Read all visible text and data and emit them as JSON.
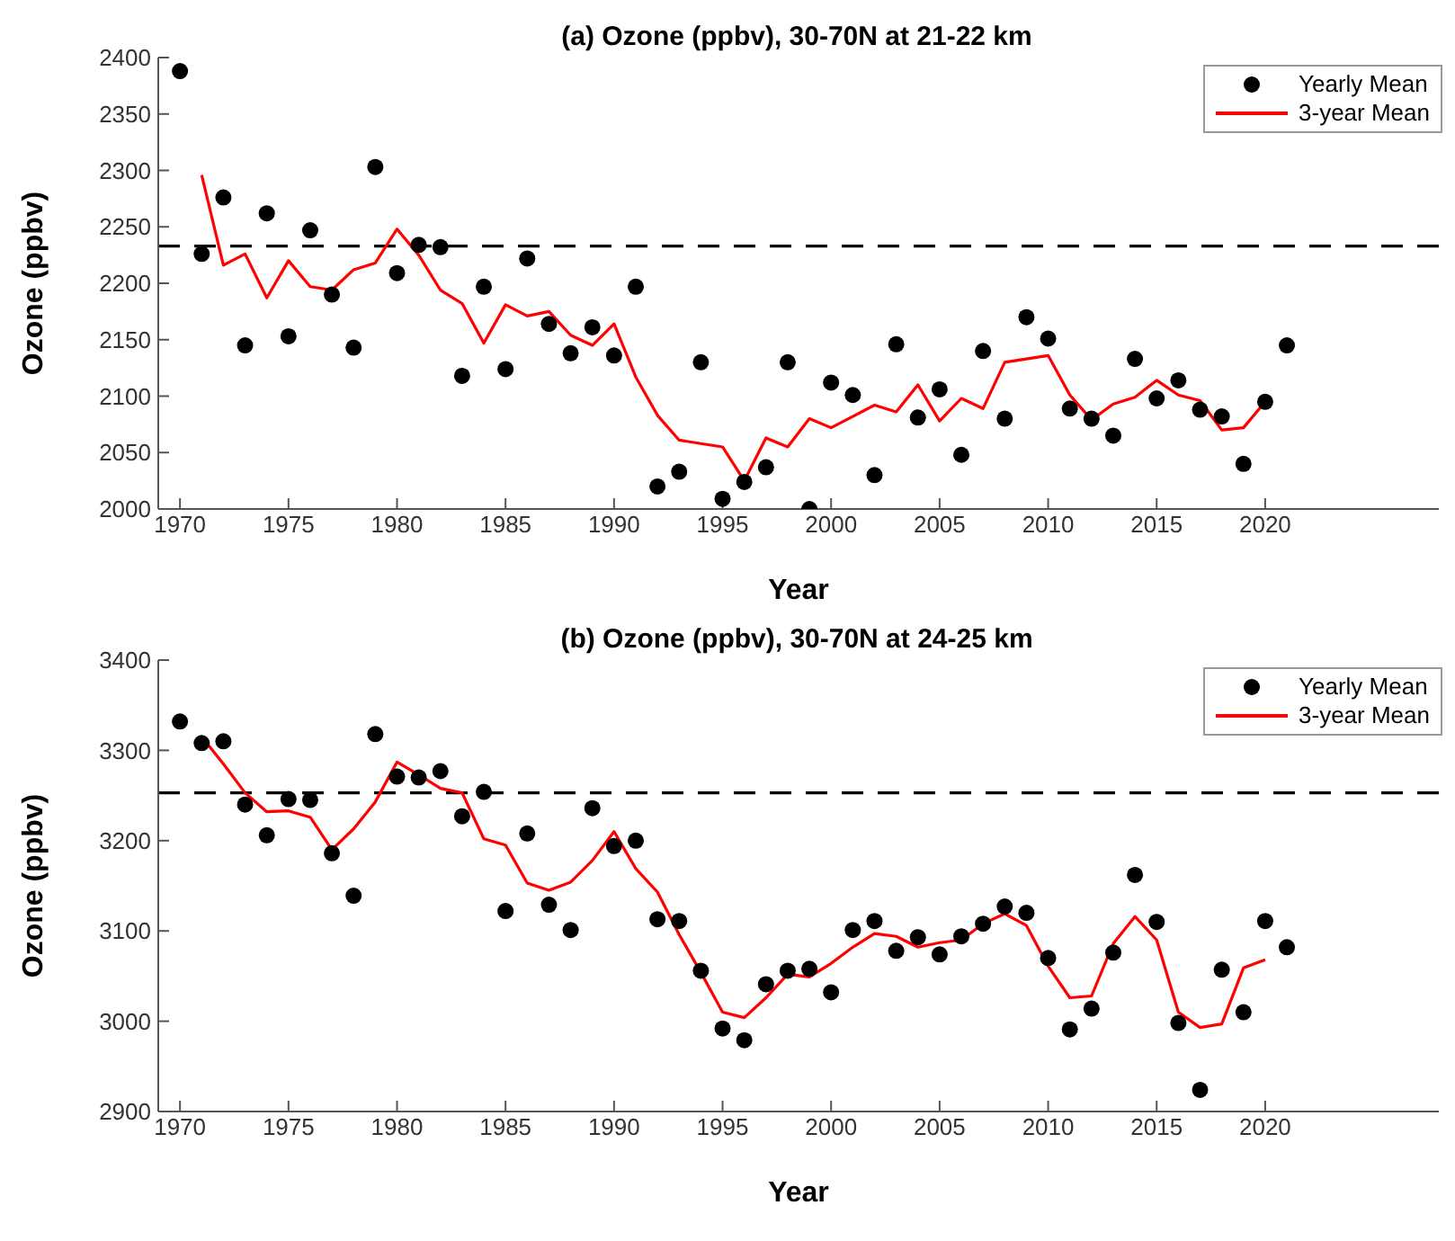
{
  "chart_data": [
    {
      "type": "scatter",
      "title": "(a) Ozone (ppbv), 30-70N at 21-22 km",
      "xlabel": "Year",
      "ylabel": "Ozone (ppbv)",
      "xlim": [
        1969,
        2028
      ],
      "xticks": [
        1970,
        1975,
        1980,
        1985,
        1990,
        1995,
        2000,
        2005,
        2010,
        2015,
        2020
      ],
      "ylim": [
        2000,
        2400
      ],
      "yticks": [
        2000,
        2050,
        2100,
        2150,
        2200,
        2250,
        2300,
        2350,
        2400
      ],
      "grid": false,
      "legend": "top right",
      "ref_lines": [
        {
          "axis": "y",
          "value": 2233,
          "line_style": "dashed",
          "color": "#000000"
        }
      ],
      "series": [
        {
          "name": "Yearly Mean",
          "marker": "circle",
          "color": "#000000",
          "x": [
            1970,
            1971,
            1972,
            1973,
            1974,
            1975,
            1976,
            1977,
            1978,
            1979,
            1980,
            1981,
            1982,
            1983,
            1984,
            1985,
            1986,
            1987,
            1988,
            1989,
            1990,
            1991,
            1992,
            1993,
            1994,
            1995,
            1996,
            1997,
            1998,
            1999,
            2000,
            2001,
            2002,
            2003,
            2004,
            2005,
            2006,
            2007,
            2008,
            2009,
            2010,
            2011,
            2012,
            2013,
            2014,
            2015,
            2016,
            2017,
            2018,
            2019,
            2020,
            2021
          ],
          "values": [
            2388,
            2226,
            2276,
            2145,
            2262,
            2153,
            2247,
            2190,
            2143,
            2303,
            2209,
            2234,
            2232,
            2118,
            2197,
            2124,
            2222,
            2164,
            2138,
            2161,
            2136,
            2197,
            2020,
            2033,
            2130,
            2009,
            2024,
            2037,
            2130,
            2000,
            2112,
            2101,
            2030,
            2146,
            2081,
            2106,
            2048,
            2140,
            2080,
            2170,
            2151,
            2089,
            2080,
            2065,
            2133,
            2098,
            2114,
            2088,
            2082,
            2040,
            2095,
            2145
          ]
        },
        {
          "name": "3-year Mean",
          "type": "line",
          "line_style": "solid",
          "color": "#ff0000",
          "x": [
            1971,
            1972,
            1973,
            1974,
            1975,
            1976,
            1977,
            1978,
            1979,
            1980,
            1981,
            1982,
            1983,
            1984,
            1985,
            1986,
            1987,
            1988,
            1989,
            1990,
            1991,
            1992,
            1993,
            1994,
            1995,
            1996,
            1997,
            1998,
            1999,
            2000,
            2001,
            2002,
            2003,
            2004,
            2005,
            2006,
            2007,
            2008,
            2009,
            2010,
            2011,
            2012,
            2013,
            2014,
            2015,
            2016,
            2017,
            2018,
            2019,
            2020
          ],
          "values": [
            2296,
            2216,
            2226,
            2187,
            2220,
            2197,
            2194,
            2212,
            2218,
            2248,
            2225,
            2194,
            2182,
            2147,
            2181,
            2171,
            2175,
            2154,
            2145,
            2164,
            2117,
            2083,
            2061,
            2058,
            2055,
            2025,
            2063,
            2055,
            2080,
            2072,
            2082,
            2092,
            2086,
            2110,
            2078,
            2098,
            2089,
            2130,
            2133,
            2136,
            2101,
            2079,
            2093,
            2099,
            2114,
            2101,
            2096,
            2070,
            2072,
            2095
          ]
        }
      ]
    },
    {
      "type": "scatter",
      "title": "(b) Ozone (ppbv), 30-70N at 24-25 km",
      "xlabel": "Year",
      "ylabel": "Ozone (ppbv)",
      "xlim": [
        1969,
        2028
      ],
      "xticks": [
        1970,
        1975,
        1980,
        1985,
        1990,
        1995,
        2000,
        2005,
        2010,
        2015,
        2020
      ],
      "ylim": [
        2900,
        3400
      ],
      "yticks": [
        2900,
        3000,
        3100,
        3200,
        3300,
        3400
      ],
      "grid": false,
      "legend": "top right",
      "ref_lines": [
        {
          "axis": "y",
          "value": 3253,
          "line_style": "dashed",
          "color": "#000000"
        }
      ],
      "series": [
        {
          "name": "Yearly Mean",
          "marker": "circle",
          "color": "#000000",
          "x": [
            1970,
            1971,
            1972,
            1973,
            1974,
            1975,
            1976,
            1977,
            1978,
            1979,
            1980,
            1981,
            1982,
            1983,
            1984,
            1985,
            1986,
            1987,
            1988,
            1989,
            1990,
            1991,
            1992,
            1993,
            1994,
            1995,
            1996,
            1997,
            1998,
            1999,
            2000,
            2001,
            2002,
            2003,
            2004,
            2005,
            2006,
            2007,
            2008,
            2009,
            2010,
            2011,
            2012,
            2013,
            2014,
            2015,
            2016,
            2017,
            2018,
            2019,
            2020,
            2021
          ],
          "values": [
            3332,
            3308,
            3310,
            3240,
            3206,
            3246,
            3245,
            3186,
            3139,
            3318,
            3271,
            3270,
            3277,
            3227,
            3254,
            3122,
            3208,
            3129,
            3101,
            3236,
            3194,
            3200,
            3113,
            3111,
            3056,
            2992,
            2979,
            3041,
            3056,
            3058,
            3032,
            3101,
            3111,
            3078,
            3093,
            3074,
            3094,
            3108,
            3127,
            3120,
            3070,
            2991,
            3014,
            3076,
            3162,
            3110,
            2998,
            2924,
            3057,
            3010,
            3111,
            3082
          ]
        },
        {
          "name": "3-year Mean",
          "type": "line",
          "line_style": "solid",
          "color": "#ff0000",
          "x": [
            1971,
            1972,
            1973,
            1974,
            1975,
            1976,
            1977,
            1978,
            1979,
            1980,
            1981,
            1982,
            1983,
            1984,
            1985,
            1986,
            1987,
            1988,
            1989,
            1990,
            1991,
            1992,
            1993,
            1994,
            1995,
            1996,
            1997,
            1998,
            1999,
            2000,
            2001,
            2002,
            2003,
            2004,
            2005,
            2006,
            2007,
            2008,
            2009,
            2010,
            2011,
            2012,
            2013,
            2014,
            2015,
            2016,
            2017,
            2018,
            2019,
            2020
          ],
          "values": [
            3315,
            3285,
            3253,
            3232,
            3233,
            3226,
            3190,
            3213,
            3243,
            3287,
            3273,
            3258,
            3253,
            3202,
            3195,
            3153,
            3145,
            3154,
            3178,
            3210,
            3169,
            3143,
            3096,
            3054,
            3010,
            3004,
            3026,
            3052,
            3049,
            3064,
            3082,
            3097,
            3094,
            3082,
            3087,
            3090,
            3108,
            3119,
            3106,
            3061,
            3026,
            3028,
            3086,
            3116,
            3090,
            3010,
            2993,
            2997,
            3059,
            3068
          ]
        }
      ]
    }
  ]
}
